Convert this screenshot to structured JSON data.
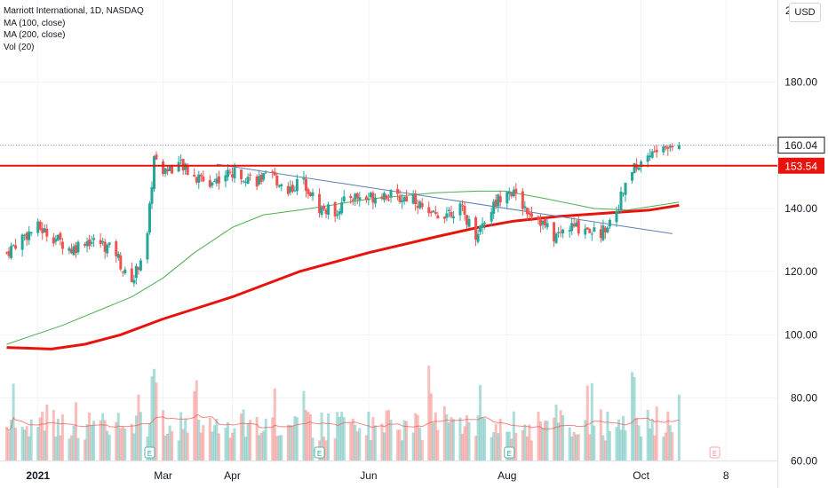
{
  "legend": {
    "symbol_line": "Marriott International, 1D, NASDAQ",
    "ma100_label": "MA (100, close)",
    "ma200_label": "MA (200, close)",
    "vol_label": "Vol (20)"
  },
  "currency_button": "USD",
  "price_axis_top": "2",
  "colors": {
    "up": "#26a69a",
    "down": "#ef5350",
    "ma100": "#4caf50",
    "ma200": "#e8130c",
    "trendline": "#5b7fb0",
    "level_line": "#e8130c",
    "last_price_tag": "#ffffff",
    "level_tag": "#e8130c"
  },
  "chart_data": {
    "type": "candlestick",
    "title": "Marriott International, 1D, NASDAQ",
    "y_ticks": [
      "180.00",
      "160.00",
      "140.00",
      "120.00",
      "100.00",
      "80.00",
      "60.00"
    ],
    "y_tick_values": [
      180,
      160,
      140,
      120,
      100,
      80,
      60
    ],
    "ylim": [
      51.5,
      206
    ],
    "x_ticks": [
      "2021",
      "Mar",
      "Apr",
      "Jun",
      "Aug",
      "Oct",
      "8"
    ],
    "x_tick_values": [
      "2021-01-04",
      "2021-03-01",
      "2021-04-01",
      "2021-06-01",
      "2021-08-02",
      "2021-10-01",
      "2021-11-08"
    ],
    "x_range": [
      "2020-12-18",
      "2021-12-01"
    ],
    "last_price": 160.04,
    "last_price_label": "160.04",
    "horizontal_level": 153.54,
    "horizontal_level_label": "153.54",
    "trendline": {
      "start": [
        "2021-03-25",
        154
      ],
      "end": [
        "2021-10-15",
        132
      ]
    },
    "earnings_markers": [
      "2021-02-23",
      "2021-05-10",
      "2021-08-03",
      "2021-11-03"
    ],
    "earnings_label": "E",
    "closes": [
      [
        "2020-12-21",
        126
      ],
      [
        "2020-12-28",
        131
      ],
      [
        "2021-01-04",
        134
      ],
      [
        "2021-01-11",
        131
      ],
      [
        "2021-01-19",
        127
      ],
      [
        "2021-01-25",
        130
      ],
      [
        "2021-02-01",
        129
      ],
      [
        "2021-02-08",
        126
      ],
      [
        "2021-02-12",
        119
      ],
      [
        "2021-02-16",
        118
      ],
      [
        "2021-02-22",
        131
      ],
      [
        "2021-02-25",
        157
      ],
      [
        "2021-03-01",
        152
      ],
      [
        "2021-03-08",
        154
      ],
      [
        "2021-03-15",
        150
      ],
      [
        "2021-03-22",
        148
      ],
      [
        "2021-03-29",
        151
      ],
      [
        "2021-04-05",
        151
      ],
      [
        "2021-04-12",
        149
      ],
      [
        "2021-04-19",
        150
      ],
      [
        "2021-04-26",
        146
      ],
      [
        "2021-05-03",
        149
      ],
      [
        "2021-05-10",
        140
      ],
      [
        "2021-05-17",
        139
      ],
      [
        "2021-05-24",
        144
      ],
      [
        "2021-05-31",
        143
      ],
      [
        "2021-06-07",
        145
      ],
      [
        "2021-06-14",
        143
      ],
      [
        "2021-06-21",
        144
      ],
      [
        "2021-06-28",
        137
      ],
      [
        "2021-07-06",
        139
      ],
      [
        "2021-07-12",
        140
      ],
      [
        "2021-07-19",
        132
      ],
      [
        "2021-07-26",
        140
      ],
      [
        "2021-08-02",
        147
      ],
      [
        "2021-08-09",
        141
      ],
      [
        "2021-08-16",
        137
      ],
      [
        "2021-08-23",
        131
      ],
      [
        "2021-08-30",
        134
      ],
      [
        "2021-09-07",
        134
      ],
      [
        "2021-09-13",
        132
      ],
      [
        "2021-09-20",
        140
      ],
      [
        "2021-09-27",
        152
      ],
      [
        "2021-10-04",
        157
      ],
      [
        "2021-10-11",
        159
      ],
      [
        "2021-10-18",
        160.04
      ]
    ],
    "ma100": [
      [
        "2020-12-21",
        97
      ],
      [
        "2021-01-15",
        103
      ],
      [
        "2021-02-15",
        112
      ],
      [
        "2021-03-01",
        118
      ],
      [
        "2021-03-15",
        126
      ],
      [
        "2021-04-01",
        134
      ],
      [
        "2021-04-15",
        138
      ],
      [
        "2021-05-01",
        139.5
      ],
      [
        "2021-05-15",
        141
      ],
      [
        "2021-06-01",
        143
      ],
      [
        "2021-07-01",
        145
      ],
      [
        "2021-07-20",
        145.5
      ],
      [
        "2021-08-01",
        145.5
      ],
      [
        "2021-08-20",
        143
      ],
      [
        "2021-09-10",
        140
      ],
      [
        "2021-09-25",
        139.5
      ],
      [
        "2021-10-18",
        142
      ]
    ],
    "ma200": [
      [
        "2020-12-21",
        96
      ],
      [
        "2021-01-10",
        95.5
      ],
      [
        "2021-01-25",
        97
      ],
      [
        "2021-02-10",
        100
      ],
      [
        "2021-03-01",
        105
      ],
      [
        "2021-04-01",
        112
      ],
      [
        "2021-05-01",
        120
      ],
      [
        "2021-06-01",
        126
      ],
      [
        "2021-07-01",
        131
      ],
      [
        "2021-07-20",
        134
      ],
      [
        "2021-08-05",
        136
      ],
      [
        "2021-08-25",
        137.5
      ],
      [
        "2021-09-15",
        138.5
      ],
      [
        "2021-10-05",
        139.5
      ],
      [
        "2021-10-18",
        141
      ]
    ],
    "volume_ma_avg_fraction": 0.3,
    "volume_peak_dates": [
      "2021-02-25",
      "2021-03-15",
      "2021-06-28",
      "2021-09-27"
    ]
  }
}
